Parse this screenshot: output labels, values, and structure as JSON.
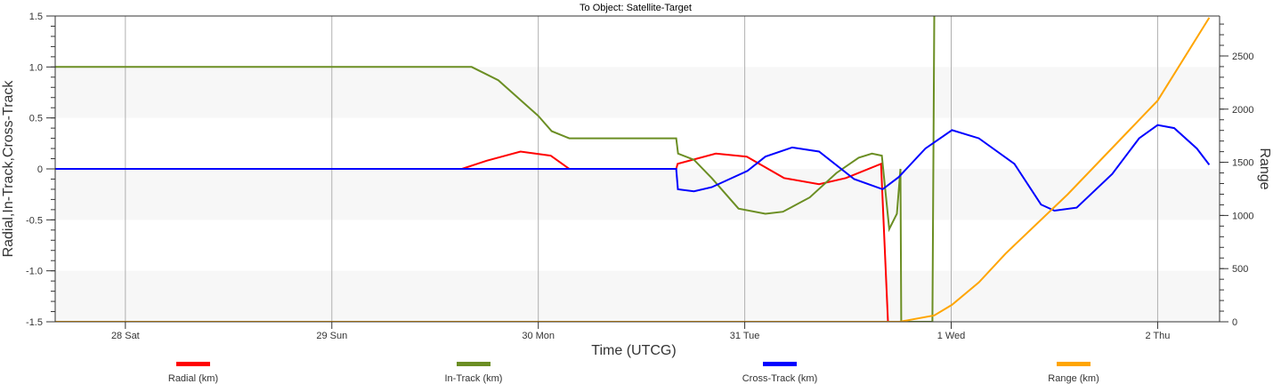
{
  "chart_data": {
    "type": "line",
    "title": "To Object: Satellite-Target",
    "xlabel": "Time (UTCG)",
    "ylabel": "Radial,In-Track,Cross-Track",
    "y2label": "Range",
    "x_unit": "days offset from 28 Sat 00:00",
    "xlim": [
      -0.34,
      5.3
    ],
    "ylim": [
      -1.5,
      1.5
    ],
    "y2lim": [
      0,
      2876
    ],
    "x_ticks": [
      {
        "v": 0,
        "label": "28 Sat"
      },
      {
        "v": 1,
        "label": "29 Sun"
      },
      {
        "v": 2,
        "label": "30 Mon"
      },
      {
        "v": 3,
        "label": "31 Tue"
      },
      {
        "v": 4,
        "label": "1 Wed"
      },
      {
        "v": 5,
        "label": "2 Thu"
      }
    ],
    "y_ticks": [
      {
        "v": -1.5,
        "label": "-1.5"
      },
      {
        "v": -1,
        "label": "-1.0"
      },
      {
        "v": -0.5,
        "label": "-0.5"
      },
      {
        "v": 0,
        "label": "0"
      },
      {
        "v": 0.5,
        "label": "0.5"
      },
      {
        "v": 1,
        "label": "1.0"
      },
      {
        "v": 1.5,
        "label": "1.5"
      }
    ],
    "y2_ticks": [
      {
        "v": 0,
        "label": "0"
      },
      {
        "v": 500,
        "label": "500"
      },
      {
        "v": 1000,
        "label": "1000"
      },
      {
        "v": 1500,
        "label": "1500"
      },
      {
        "v": 2000,
        "label": "2000"
      },
      {
        "v": 2500,
        "label": "2500"
      }
    ],
    "series": [
      {
        "name": "Radial (km)",
        "color": "#ff0000",
        "axis": "left",
        "points": [
          [
            -0.34,
            0
          ],
          [
            1.63,
            0
          ],
          [
            1.75,
            0.08
          ],
          [
            1.914,
            0.17
          ],
          [
            2.06,
            0.13
          ],
          [
            2.15,
            0
          ],
          [
            2.668,
            0
          ],
          [
            2.675,
            0.05
          ],
          [
            2.86,
            0.15
          ],
          [
            3.01,
            0.12
          ],
          [
            3.19,
            -0.09
          ],
          [
            3.36,
            -0.15
          ],
          [
            3.49,
            -0.09
          ],
          [
            3.66,
            0.05
          ],
          [
            3.694,
            -1.5
          ]
        ]
      },
      {
        "name": "In-Track (km)",
        "color": "#6b8e23",
        "axis": "left",
        "points": [
          [
            -0.34,
            1
          ],
          [
            1.677,
            1
          ],
          [
            1.806,
            0.87
          ],
          [
            2.0,
            0.52
          ],
          [
            2.065,
            0.37
          ],
          [
            2.15,
            0.3
          ],
          [
            2.668,
            0.3
          ],
          [
            2.677,
            0.15
          ],
          [
            2.754,
            0.09
          ],
          [
            2.84,
            -0.09
          ],
          [
            2.97,
            -0.39
          ],
          [
            3.1,
            -0.44
          ],
          [
            3.185,
            -0.42
          ],
          [
            3.315,
            -0.28
          ],
          [
            3.444,
            -0.04
          ],
          [
            3.552,
            0.11
          ],
          [
            3.616,
            0.15
          ],
          [
            3.664,
            0.13
          ],
          [
            3.7,
            -0.59
          ],
          [
            3.737,
            -0.44
          ],
          [
            3.754,
            0
          ],
          [
            3.758,
            -1.5
          ],
          [
            3.909,
            -1.5
          ],
          [
            3.918,
            1.5
          ]
        ]
      },
      {
        "name": "Cross-Track (km)",
        "color": "#0000ff",
        "axis": "left",
        "points": [
          [
            -0.34,
            0
          ],
          [
            2.668,
            0
          ],
          [
            2.676,
            -0.2
          ],
          [
            2.754,
            -0.22
          ],
          [
            2.84,
            -0.18
          ],
          [
            3.013,
            -0.02
          ],
          [
            3.1,
            0.12
          ],
          [
            3.23,
            0.21
          ],
          [
            3.36,
            0.17
          ],
          [
            3.53,
            -0.1
          ],
          [
            3.668,
            -0.2
          ],
          [
            3.746,
            -0.08
          ],
          [
            3.875,
            0.2
          ],
          [
            4.004,
            0.38
          ],
          [
            4.134,
            0.3
          ],
          [
            4.306,
            0.05
          ],
          [
            4.435,
            -0.35
          ],
          [
            4.5,
            -0.41
          ],
          [
            4.608,
            -0.38
          ],
          [
            4.78,
            -0.05
          ],
          [
            4.91,
            0.3
          ],
          [
            5.0,
            0.43
          ],
          [
            5.08,
            0.4
          ],
          [
            5.19,
            0.2
          ],
          [
            5.25,
            0.04
          ]
        ]
      },
      {
        "name": "Range (km)",
        "color": "#ffa500",
        "axis": "right",
        "points": [
          [
            -0.34,
            0
          ],
          [
            3.75,
            0
          ],
          [
            3.918,
            60
          ],
          [
            4.004,
            160
          ],
          [
            4.134,
            370
          ],
          [
            4.263,
            640
          ],
          [
            4.565,
            1200
          ],
          [
            5.0,
            2080
          ],
          [
            5.25,
            2860
          ]
        ]
      }
    ],
    "legend": "bottom",
    "grid": "vertical"
  }
}
